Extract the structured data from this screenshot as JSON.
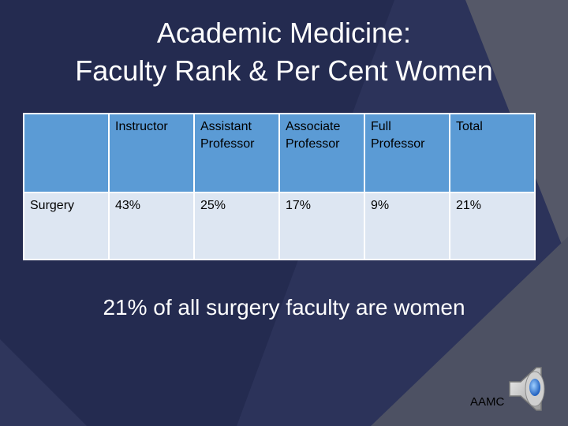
{
  "slide": {
    "title_line1": "Academic Medicine:",
    "title_line2": "Faculty Rank & Per Cent Women",
    "caption": "21% of all surgery faculty are women",
    "credit": "AAMC"
  },
  "table": {
    "header_row": [
      "",
      "Instructor",
      "Assistant Professor",
      "Associate Professor",
      "Full Professor",
      "Total"
    ],
    "rows": [
      [
        "Surgery",
        "43%",
        "25%",
        "17%",
        "9%",
        "21%"
      ]
    ]
  },
  "icons": {
    "speaker": "speaker-icon"
  },
  "colors": {
    "background": "#222a4e",
    "accent_gray": "#4b4f63",
    "table_header": "#5b9bd5",
    "table_body": "#dde6f2"
  }
}
